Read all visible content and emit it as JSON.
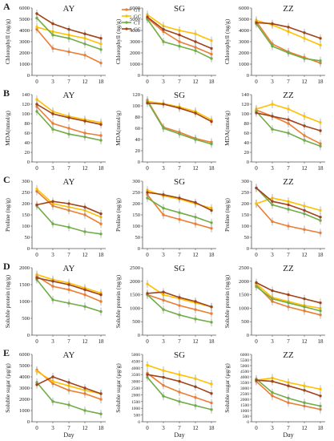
{
  "figure": {
    "x_ticks": [
      0,
      3,
      7,
      12,
      18
    ],
    "xlabel": "Day",
    "legend": {
      "position": "top-center",
      "entries": [
        "GT",
        "GC",
        "CT",
        "CC"
      ]
    },
    "colors": {
      "GT": "#ED7D31",
      "GC": "#FFC000",
      "CT": "#70AD47",
      "CC": "#A0421A"
    },
    "grid": false
  },
  "chart_data": [
    {
      "type": "line",
      "panel_letter": "A",
      "title": "AY",
      "ylabel": "Chlorophyll (ng/g)",
      "ylim": [
        0,
        6000
      ],
      "yticks": [
        0,
        1000,
        2000,
        3000,
        4000,
        5000,
        6000
      ],
      "x": [
        0,
        3,
        7,
        12,
        18
      ],
      "series": [
        {
          "name": "GT",
          "values": [
            4100,
            2400,
            2100,
            1800,
            1100
          ]
        },
        {
          "name": "GC",
          "values": [
            4300,
            3900,
            3600,
            3300,
            2800
          ]
        },
        {
          "name": "CT",
          "values": [
            5100,
            3600,
            3300,
            2800,
            2300
          ]
        },
        {
          "name": "CC",
          "values": [
            5500,
            4600,
            4100,
            3700,
            3300
          ]
        }
      ]
    },
    {
      "type": "line",
      "panel_letter": "A",
      "title": "SG",
      "ylabel": "Chlorophyll (ng/g)",
      "ylim": [
        0,
        6000
      ],
      "yticks": [
        0,
        1000,
        2000,
        3000,
        4000,
        5000,
        6000
      ],
      "x": [
        0,
        3,
        7,
        12,
        18
      ],
      "series": [
        {
          "name": "GT",
          "values": [
            5100,
            3900,
            3000,
            2500,
            1900
          ]
        },
        {
          "name": "GC",
          "values": [
            5400,
            4400,
            4000,
            3700,
            3100
          ]
        },
        {
          "name": "CT",
          "values": [
            5000,
            3000,
            2600,
            2200,
            1500
          ]
        },
        {
          "name": "CC",
          "values": [
            5200,
            4100,
            3600,
            3000,
            2400
          ]
        }
      ]
    },
    {
      "type": "line",
      "panel_letter": "A",
      "title": "ZZ",
      "ylabel": "Chlorophyll (ng/g)",
      "ylim": [
        0,
        6000
      ],
      "yticks": [
        0,
        1000,
        2000,
        3000,
        4000,
        5000,
        6000
      ],
      "x": [
        0,
        3,
        7,
        12,
        18
      ],
      "series": [
        {
          "name": "GT",
          "values": [
            4800,
            2800,
            2100,
            1600,
            1100
          ]
        },
        {
          "name": "GC",
          "values": [
            4900,
            4500,
            3900,
            3300,
            2700
          ]
        },
        {
          "name": "CT",
          "values": [
            4600,
            2600,
            2000,
            1500,
            1300
          ]
        },
        {
          "name": "CC",
          "values": [
            4700,
            4600,
            4300,
            3800,
            3300
          ]
        }
      ]
    },
    {
      "type": "line",
      "panel_letter": "B",
      "title": "AY",
      "ylabel": "MDA(nmol/g)",
      "ylim": [
        0,
        140
      ],
      "yticks": [
        0,
        20,
        40,
        60,
        80,
        100,
        120,
        140
      ],
      "x": [
        0,
        3,
        7,
        12,
        18
      ],
      "series": [
        {
          "name": "GT",
          "values": [
            115,
            80,
            70,
            60,
            55
          ]
        },
        {
          "name": "GC",
          "values": [
            130,
            105,
            95,
            88,
            82
          ]
        },
        {
          "name": "CT",
          "values": [
            105,
            68,
            58,
            52,
            45
          ]
        },
        {
          "name": "CC",
          "values": [
            120,
            100,
            92,
            85,
            78
          ]
        }
      ]
    },
    {
      "type": "line",
      "panel_letter": "B",
      "title": "SG",
      "ylabel": "MDA(nmol/g)",
      "ylim": [
        0,
        120
      ],
      "yticks": [
        0,
        20,
        40,
        60,
        80,
        100,
        120
      ],
      "x": [
        0,
        3,
        7,
        12,
        18
      ],
      "series": [
        {
          "name": "GT",
          "values": [
            110,
            62,
            53,
            42,
            35
          ]
        },
        {
          "name": "GC",
          "values": [
            108,
            104,
            98,
            90,
            75
          ]
        },
        {
          "name": "CT",
          "values": [
            108,
            60,
            50,
            40,
            32
          ]
        },
        {
          "name": "CC",
          "values": [
            105,
            103,
            96,
            87,
            72
          ]
        }
      ]
    },
    {
      "type": "line",
      "panel_letter": "B",
      "title": "ZZ",
      "ylabel": "MDA(nmol/g)",
      "ylim": [
        0,
        140
      ],
      "yticks": [
        0,
        20,
        40,
        60,
        80,
        100,
        120,
        140
      ],
      "x": [
        0,
        3,
        7,
        12,
        18
      ],
      "series": [
        {
          "name": "GT",
          "values": [
            108,
            95,
            80,
            55,
            38
          ]
        },
        {
          "name": "GC",
          "values": [
            110,
            120,
            110,
            95,
            82
          ]
        },
        {
          "name": "CT",
          "values": [
            105,
            68,
            60,
            45,
            33
          ]
        },
        {
          "name": "CC",
          "values": [
            102,
            95,
            88,
            75,
            65
          ]
        }
      ]
    },
    {
      "type": "line",
      "panel_letter": "C",
      "title": "AY",
      "ylabel": "Proline (ng/g)",
      "ylim": [
        0,
        300
      ],
      "yticks": [
        0,
        50,
        100,
        150,
        200,
        250,
        300
      ],
      "x": [
        0,
        3,
        7,
        12,
        18
      ],
      "series": [
        {
          "name": "GT",
          "values": [
            255,
            190,
            170,
            150,
            110
          ]
        },
        {
          "name": "GC",
          "values": [
            265,
            200,
            185,
            170,
            140
          ]
        },
        {
          "name": "CT",
          "values": [
            190,
            110,
            95,
            75,
            65
          ]
        },
        {
          "name": "CC",
          "values": [
            195,
            210,
            200,
            185,
            155
          ]
        }
      ]
    },
    {
      "type": "line",
      "panel_letter": "C",
      "title": "SG",
      "ylabel": "Proline (ng/g)",
      "ylim": [
        0,
        300
      ],
      "yticks": [
        0,
        50,
        100,
        150,
        200,
        250,
        300
      ],
      "x": [
        0,
        3,
        7,
        12,
        18
      ],
      "series": [
        {
          "name": "GT",
          "values": [
            240,
            150,
            130,
            110,
            90
          ]
        },
        {
          "name": "GC",
          "values": [
            260,
            235,
            220,
            200,
            180
          ]
        },
        {
          "name": "CT",
          "values": [
            225,
            180,
            160,
            140,
            115
          ]
        },
        {
          "name": "CC",
          "values": [
            250,
            240,
            225,
            205,
            170
          ]
        }
      ]
    },
    {
      "type": "line",
      "panel_letter": "C",
      "title": "ZZ",
      "ylabel": "Proline (ng/g)",
      "ylim": [
        0,
        300
      ],
      "yticks": [
        0,
        50,
        100,
        150,
        200,
        250,
        300
      ],
      "x": [
        0,
        3,
        7,
        12,
        18
      ],
      "series": [
        {
          "name": "GT",
          "values": [
            200,
            120,
            100,
            85,
            70
          ]
        },
        {
          "name": "GC",
          "values": [
            200,
            225,
            210,
            190,
            170
          ]
        },
        {
          "name": "CT",
          "values": [
            270,
            195,
            175,
            155,
            125
          ]
        },
        {
          "name": "CC",
          "values": [
            270,
            210,
            195,
            170,
            140
          ]
        }
      ]
    },
    {
      "type": "line",
      "panel_letter": "D",
      "title": "AY",
      "ylabel": "Soluble protein (ng/g)",
      "ylim": [
        0,
        2000
      ],
      "yticks": [
        0,
        500,
        1000,
        1500,
        2000
      ],
      "x": [
        0,
        3,
        7,
        12,
        18
      ],
      "series": [
        {
          "name": "GT",
          "values": [
            1750,
            1450,
            1350,
            1200,
            1000
          ]
        },
        {
          "name": "GC",
          "values": [
            1800,
            1650,
            1550,
            1400,
            1250
          ]
        },
        {
          "name": "CT",
          "values": [
            1650,
            1050,
            950,
            850,
            700
          ]
        },
        {
          "name": "CC",
          "values": [
            1700,
            1600,
            1500,
            1350,
            1200
          ]
        }
      ]
    },
    {
      "type": "line",
      "panel_letter": "D",
      "title": "SG",
      "ylabel": "Soluble protein (ng/g)",
      "ylim": [
        0,
        2500
      ],
      "yticks": [
        0,
        500,
        1000,
        1500,
        2000,
        2500
      ],
      "x": [
        0,
        3,
        7,
        12,
        18
      ],
      "series": [
        {
          "name": "GT",
          "values": [
            1500,
            1300,
            1100,
            950,
            800
          ]
        },
        {
          "name": "GC",
          "values": [
            1900,
            1500,
            1350,
            1200,
            1050
          ]
        },
        {
          "name": "CT",
          "values": [
            1500,
            950,
            750,
            600,
            480
          ]
        },
        {
          "name": "CC",
          "values": [
            1550,
            1600,
            1400,
            1250,
            1050
          ]
        }
      ]
    },
    {
      "type": "line",
      "panel_letter": "D",
      "title": "ZZ",
      "ylabel": "Soluble protein (ng/g)",
      "ylim": [
        0,
        2500
      ],
      "yticks": [
        0,
        500,
        1000,
        1500,
        2000,
        2500
      ],
      "x": [
        0,
        3,
        7,
        12,
        18
      ],
      "series": [
        {
          "name": "GT",
          "values": [
            1850,
            1250,
            1050,
            900,
            750
          ]
        },
        {
          "name": "GC",
          "values": [
            1900,
            1400,
            1250,
            1100,
            1000
          ]
        },
        {
          "name": "CT",
          "values": [
            1800,
            1350,
            1200,
            1050,
            900
          ]
        },
        {
          "name": "CC",
          "values": [
            1950,
            1650,
            1500,
            1350,
            1200
          ]
        }
      ]
    },
    {
      "type": "line",
      "panel_letter": "E",
      "title": "AY",
      "ylabel": "Soluble sugar (μg/g)",
      "ylim": [
        0,
        6000
      ],
      "yticks": [
        0,
        1000,
        2000,
        3000,
        4000,
        5000,
        6000
      ],
      "x": [
        0,
        3,
        7,
        12,
        18
      ],
      "series": [
        {
          "name": "GT",
          "values": [
            4600,
            3400,
            2800,
            2500,
            2000
          ]
        },
        {
          "name": "GC",
          "values": [
            4500,
            3600,
            3200,
            2800,
            2500
          ]
        },
        {
          "name": "CT",
          "values": [
            3500,
            1800,
            1500,
            1000,
            700
          ]
        },
        {
          "name": "CC",
          "values": [
            3300,
            4000,
            3500,
            3000,
            2500
          ]
        }
      ]
    },
    {
      "type": "line",
      "panel_letter": "E",
      "title": "SG",
      "ylabel": "Soluble sugar (μg/g)",
      "ylim": [
        0,
        5000
      ],
      "yticks": [
        0,
        500,
        1000,
        1500,
        2000,
        2500,
        3000,
        3500,
        4000,
        4500,
        5000
      ],
      "x": [
        0,
        3,
        7,
        12,
        18
      ],
      "series": [
        {
          "name": "GT",
          "values": [
            3600,
            2700,
            2200,
            1800,
            1400
          ]
        },
        {
          "name": "GC",
          "values": [
            4200,
            3800,
            3500,
            3200,
            2800
          ]
        },
        {
          "name": "CT",
          "values": [
            3300,
            1900,
            1500,
            1200,
            900
          ]
        },
        {
          "name": "CC",
          "values": [
            3500,
            3300,
            3000,
            2600,
            2100
          ]
        }
      ]
    },
    {
      "type": "line",
      "panel_letter": "E",
      "title": "ZZ",
      "ylabel": "Soluble sugar (μg/g)",
      "ylim": [
        0,
        6000
      ],
      "yticks": [
        0,
        500,
        1000,
        1500,
        2000,
        2500,
        3000,
        3500,
        4000,
        4500,
        5000,
        5500,
        6000
      ],
      "x": [
        0,
        3,
        7,
        12,
        18
      ],
      "series": [
        {
          "name": "GT",
          "values": [
            3600,
            2300,
            1700,
            1400,
            1100
          ]
        },
        {
          "name": "GC",
          "values": [
            3700,
            3900,
            3500,
            3200,
            2900
          ]
        },
        {
          "name": "CT",
          "values": [
            3800,
            2600,
            2100,
            1700,
            1400
          ]
        },
        {
          "name": "CC",
          "values": [
            3700,
            3600,
            3200,
            2800,
            2300
          ]
        }
      ]
    }
  ]
}
